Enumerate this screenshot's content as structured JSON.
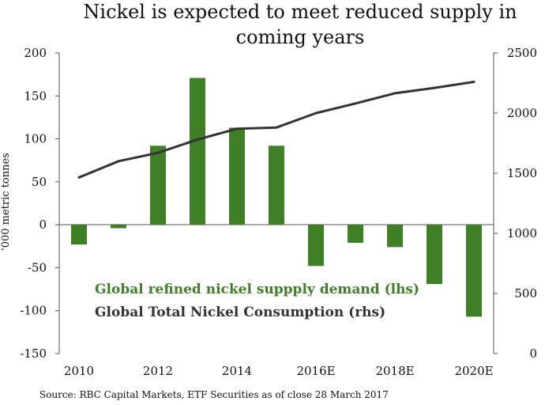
{
  "chart_data": {
    "type": "bar+line",
    "title_lines": [
      "Nickel is expected to meet reduced supply in",
      "coming years"
    ],
    "categories": [
      "2010",
      "2011",
      "2012",
      "2013",
      "2014",
      "2015",
      "2016E",
      "2017E",
      "2018E",
      "2019E",
      "2020E"
    ],
    "x_tick_labels": [
      "2010",
      "2012",
      "2014",
      "2016E",
      "2018E",
      "2020E"
    ],
    "series": [
      {
        "name": "Global refined nickel suppply demand (lhs)",
        "kind": "bar",
        "axis": "left",
        "color": "#3f7f26",
        "values": [
          -23,
          -4,
          92,
          171,
          113,
          92,
          -48,
          -21,
          -26,
          -69,
          -107
        ]
      },
      {
        "name": "Global Total Nickel Consumption (rhs)",
        "kind": "line",
        "axis": "right",
        "color": "#333333",
        "values": [
          1465,
          1600,
          1670,
          1780,
          1870,
          1880,
          2000,
          2080,
          2165,
          2210,
          2260
        ]
      }
    ],
    "left_axis": {
      "label": "'000 metric tonnes",
      "ylim": [
        -150,
        200
      ],
      "ticks": [
        "200",
        "150",
        "100",
        "50",
        "0",
        "-50",
        "-100",
        "-150"
      ]
    },
    "right_axis": {
      "ylim": [
        0,
        2500
      ],
      "ticks": [
        "2500",
        "2000",
        "1500",
        "1000",
        "500",
        "0"
      ]
    },
    "legend": [
      {
        "label": "Global refined nickel suppply demand (lhs)",
        "color": "#3f7f26"
      },
      {
        "label": "Global Total Nickel Consumption (rhs)",
        "color": "#333333"
      }
    ],
    "source": "Source: RBC Capital Markets, ETF Securities as of close 28 March 2017"
  }
}
